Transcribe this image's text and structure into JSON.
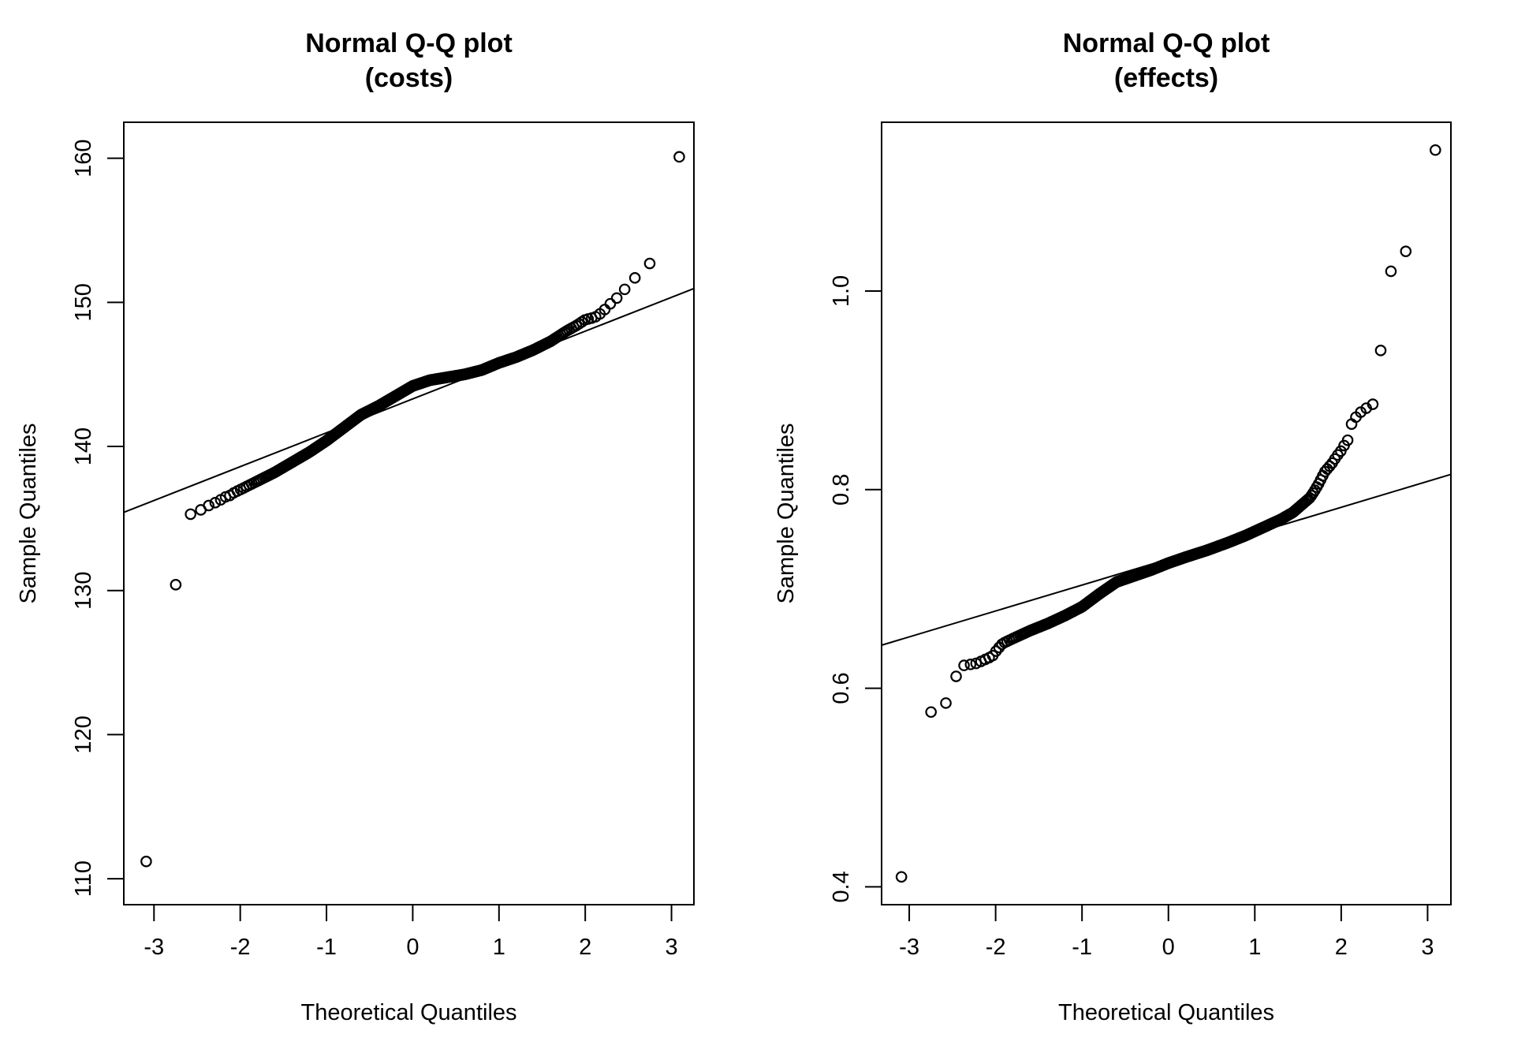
{
  "figure": {
    "background_color": "#ffffff",
    "foreground_color": "#000000"
  },
  "chart_data": [
    {
      "type": "scatter",
      "panel": "costs",
      "title": "Normal Q-Q plot",
      "subtitle": "(costs)",
      "xlabel": "Theoretical Quantiles",
      "ylabel": "Sample Quantiles",
      "xticks": [
        -3,
        -2,
        -1,
        0,
        1,
        2,
        3
      ],
      "xtick_labels": [
        "-3",
        "-2",
        "-1",
        "0",
        "1",
        "2",
        "3"
      ],
      "yticks": [
        110,
        120,
        130,
        140,
        150,
        160
      ],
      "ytick_labels": [
        "110",
        "120",
        "130",
        "140",
        "150",
        "160"
      ],
      "xlim": [
        -3.35,
        3.26
      ],
      "ylim": [
        108.2,
        162.5
      ],
      "grid": false,
      "legend": null,
      "marker": "open-circle",
      "n_points": 500,
      "qq_line": {
        "intercept": 143.3,
        "slope": 2.35
      },
      "quantile_curve": {
        "theoretical_q": [
          -3.09,
          -2.748,
          -2.576,
          -2.457,
          -2.366,
          -2.29,
          -2.226,
          -2.17,
          -2.12,
          -2.07,
          -2.0,
          -1.8,
          -1.6,
          -1.4,
          -1.2,
          -1.0,
          -0.8,
          -0.6,
          -0.4,
          -0.2,
          0.0,
          0.2,
          0.4,
          0.6,
          0.8,
          1.0,
          1.2,
          1.4,
          1.6,
          1.78,
          1.9,
          2.0,
          2.07,
          2.12,
          2.17,
          2.226,
          2.29,
          2.366,
          2.457,
          2.576,
          2.748,
          3.09
        ],
        "sample_quantiles": [
          111.2,
          130.4,
          135.3,
          135.6,
          135.9,
          136.1,
          136.3,
          136.5,
          136.6,
          136.8,
          137.0,
          137.6,
          138.2,
          138.9,
          139.6,
          140.4,
          141.3,
          142.2,
          142.8,
          143.5,
          144.2,
          144.6,
          144.8,
          145.0,
          145.3,
          145.8,
          146.2,
          146.7,
          147.3,
          148.0,
          148.4,
          148.8,
          148.9,
          149.0,
          149.2,
          149.5,
          149.9,
          150.3,
          150.9,
          151.7,
          152.7,
          160.1
        ]
      }
    },
    {
      "type": "scatter",
      "panel": "effects",
      "title": "Normal Q-Q plot",
      "subtitle": "(effects)",
      "xlabel": "Theoretical Quantiles",
      "ylabel": "Sample Quantiles",
      "xticks": [
        -3,
        -2,
        -1,
        0,
        1,
        2,
        3
      ],
      "xtick_labels": [
        "-3",
        "-2",
        "-1",
        "0",
        "1",
        "2",
        "3"
      ],
      "yticks": [
        0.4,
        0.6,
        0.8,
        1.0
      ],
      "ytick_labels": [
        "0.4",
        "0.6",
        "0.8",
        "1.0"
      ],
      "xlim": [
        -3.32,
        3.27
      ],
      "ylim": [
        0.382,
        1.17
      ],
      "grid": false,
      "legend": null,
      "marker": "open-circle",
      "n_points": 500,
      "qq_line": {
        "intercept": 0.73,
        "slope": 0.0261
      },
      "quantile_curve": {
        "theoretical_q": [
          -3.09,
          -2.748,
          -2.576,
          -2.457,
          -2.366,
          -2.29,
          -2.226,
          -2.17,
          -2.12,
          -2.07,
          -2.03,
          -1.99,
          -1.95,
          -1.92,
          -1.8,
          -1.6,
          -1.4,
          -1.2,
          -1.0,
          -0.8,
          -0.6,
          -0.4,
          -0.2,
          0.0,
          0.2,
          0.45,
          0.7,
          0.9,
          1.1,
          1.3,
          1.44,
          1.56,
          1.64,
          1.7,
          1.74,
          1.81,
          1.85,
          1.89,
          1.92,
          1.95,
          1.99,
          2.03,
          2.07,
          2.12,
          2.17,
          2.226,
          2.29,
          2.366,
          2.457,
          2.576,
          2.748,
          3.09
        ],
        "sample_quantiles": [
          0.41,
          0.576,
          0.585,
          0.612,
          0.623,
          0.624,
          0.625,
          0.627,
          0.629,
          0.631,
          0.633,
          0.638,
          0.642,
          0.645,
          0.65,
          0.658,
          0.665,
          0.673,
          0.682,
          0.695,
          0.707,
          0.713,
          0.719,
          0.726,
          0.732,
          0.739,
          0.747,
          0.754,
          0.762,
          0.77,
          0.777,
          0.786,
          0.792,
          0.8,
          0.806,
          0.818,
          0.822,
          0.826,
          0.83,
          0.834,
          0.838,
          0.844,
          0.848,
          0.866,
          0.873,
          0.878,
          0.882,
          0.886,
          0.94,
          1.02,
          1.04,
          1.142
        ]
      }
    }
  ]
}
